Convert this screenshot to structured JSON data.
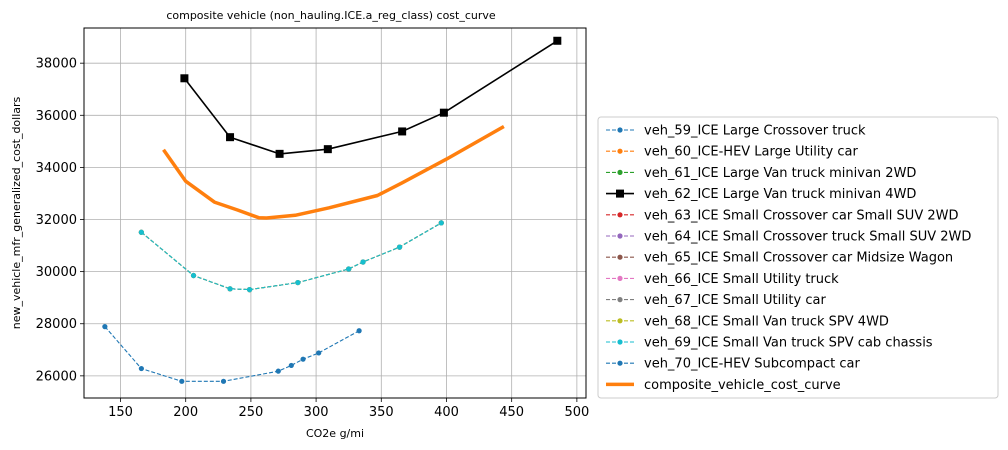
{
  "chart_data": {
    "type": "line",
    "title": "composite vehicle (non_hauling.ICE.a_reg_class) cost_curve",
    "xlabel": "CO2e g/mi",
    "ylabel": "new_vehicle_mfr_generalized_cost_dollars",
    "xlim": [
      122,
      507
    ],
    "ylim": [
      25150,
      39350
    ],
    "xticks": [
      150,
      200,
      250,
      300,
      350,
      400,
      450,
      500
    ],
    "yticks": [
      26000,
      28000,
      30000,
      32000,
      34000,
      36000,
      38000
    ],
    "grid": true,
    "legend_position": "outside-right",
    "series": [
      {
        "name": "veh_59_ICE Large Crossover truck",
        "color": "#1f77b4",
        "style": "dashed",
        "marker": "dot",
        "x": [],
        "y": []
      },
      {
        "name": "veh_60_ICE-HEV Large Utility car",
        "color": "#ff7f0e",
        "style": "dashed",
        "marker": "dot",
        "x": [],
        "y": []
      },
      {
        "name": "veh_61_ICE Large Van truck minivan 2WD",
        "color": "#2ca02c",
        "style": "dashed",
        "marker": "dot",
        "x": [],
        "y": []
      },
      {
        "name": "veh_62_ICE Large Van truck minivan 4WD",
        "color": "#000000",
        "style": "solid",
        "marker": "square",
        "x": [
          199,
          234,
          272,
          309,
          366,
          398,
          485
        ],
        "y": [
          37420,
          35160,
          34520,
          34700,
          35380,
          36100,
          38860
        ]
      },
      {
        "name": "veh_63_ICE Small Crossover car Small SUV 2WD",
        "color": "#d62728",
        "style": "dashed",
        "marker": "dot",
        "x": [],
        "y": []
      },
      {
        "name": "veh_64_ICE Small Crossover truck Small SUV 2WD",
        "color": "#9467bd",
        "style": "dashed",
        "marker": "dot",
        "x": [],
        "y": []
      },
      {
        "name": "veh_65_ICE Small Crossover car Midsize Wagon",
        "color": "#8c564b",
        "style": "dashed",
        "marker": "dot",
        "x": [
          166,
          206,
          234,
          249,
          286,
          325,
          336,
          364,
          396
        ],
        "y": [
          31510,
          29850,
          29340,
          29310,
          29580,
          30100,
          30370,
          30940,
          31870
        ]
      },
      {
        "name": "veh_66_ICE Small Utility truck",
        "color": "#e377c2",
        "style": "dashed",
        "marker": "dot",
        "x": [
          166,
          206,
          234,
          249,
          286,
          325,
          336,
          364,
          396
        ],
        "y": [
          31510,
          29850,
          29340,
          29310,
          29580,
          30100,
          30370,
          30940,
          31870
        ]
      },
      {
        "name": "veh_67_ICE Small Utility car",
        "color": "#7f7f7f",
        "style": "dashed",
        "marker": "dot",
        "x": [
          166,
          206,
          234,
          249,
          286,
          325,
          336,
          364,
          396
        ],
        "y": [
          31510,
          29850,
          29340,
          29310,
          29580,
          30100,
          30370,
          30940,
          31870
        ]
      },
      {
        "name": "veh_68_ICE Small Van truck SPV 4WD",
        "color": "#bcbd22",
        "style": "dashed",
        "marker": "dot",
        "x": [
          166,
          206,
          234,
          249,
          286,
          325,
          336,
          364,
          396
        ],
        "y": [
          31510,
          29850,
          29340,
          29310,
          29580,
          30100,
          30370,
          30940,
          31870
        ]
      },
      {
        "name": "veh_69_ICE Small Van truck SPV cab chassis",
        "color": "#17becf",
        "style": "dashed",
        "marker": "dot",
        "x": [
          166,
          206,
          234,
          249,
          286,
          325,
          336,
          364,
          396
        ],
        "y": [
          31510,
          29850,
          29340,
          29310,
          29580,
          30100,
          30370,
          30940,
          31870
        ]
      },
      {
        "name": "veh_70_ICE-HEV Subcompact car",
        "color": "#1f77b4",
        "style": "dashed",
        "marker": "dot",
        "x": [
          138,
          166,
          197,
          229,
          271,
          281,
          290,
          302,
          333
        ],
        "y": [
          27890,
          26280,
          25790,
          25790,
          26180,
          26400,
          26640,
          26880,
          27730
        ]
      },
      {
        "name": "composite_vehicle_cost_curve",
        "color": "#ff7f0e",
        "style": "thick",
        "marker": "none",
        "x": [
          183,
          200,
          222,
          240,
          256,
          262,
          284,
          310,
          347,
          366,
          400,
          444
        ],
        "y": [
          34680,
          33470,
          32670,
          32360,
          32070,
          32060,
          32160,
          32450,
          32920,
          33410,
          34320,
          35570
        ]
      }
    ]
  }
}
